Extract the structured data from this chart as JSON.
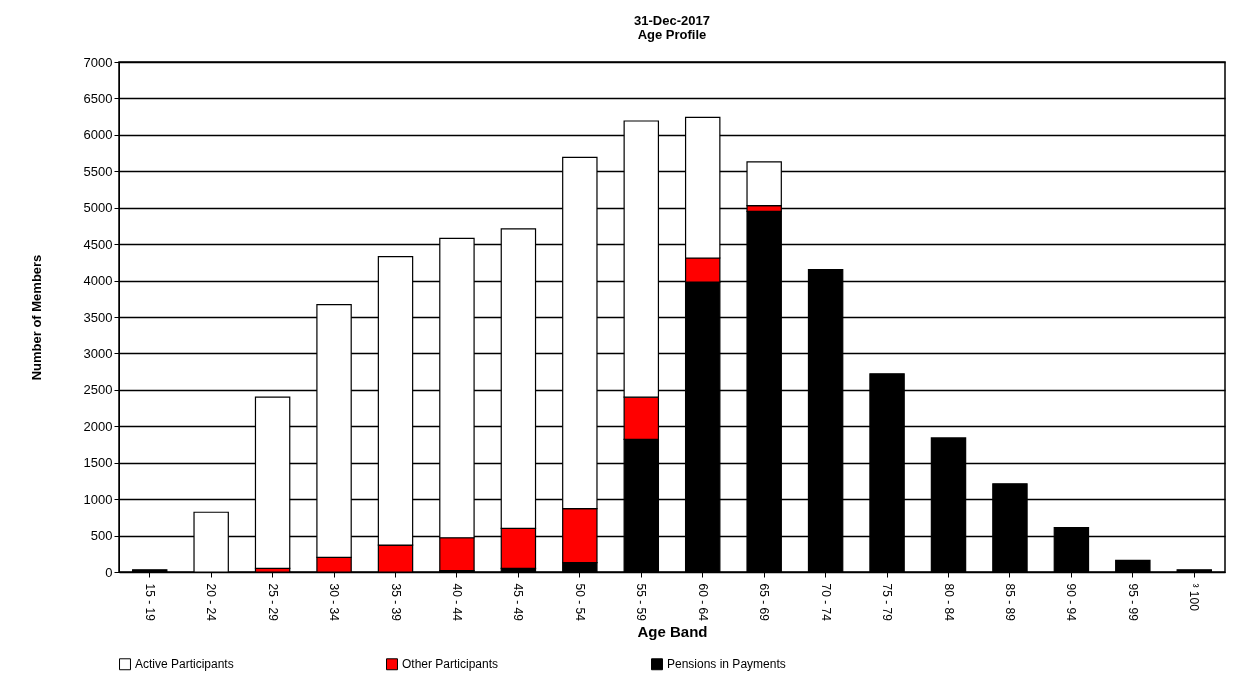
{
  "chart_data": {
    "type": "bar",
    "title": "31-Dec-2017",
    "subtitle": "Age Profile",
    "xlabel": "Age Band",
    "ylabel": "Number of Members",
    "categories": [
      "15 - 19",
      "20 - 24",
      "25 - 29",
      "30 - 34",
      "35 - 39",
      "40 - 44",
      "45 - 49",
      "50 - 54",
      "55 - 59",
      "60 - 64",
      "65 - 69",
      "70 - 74",
      "75 - 79",
      "80 - 84",
      "85 - 89",
      "90 - 94",
      "95 - 99",
      "³ 100"
    ],
    "stacked": true,
    "series": [
      {
        "name": "Pensions in Payments",
        "color": "#000000",
        "values": [
          30,
          0,
          0,
          0,
          0,
          20,
          50,
          130,
          1820,
          3980,
          4950,
          4150,
          2720,
          1840,
          1210,
          610,
          160,
          30
        ]
      },
      {
        "name": "Other Participants",
        "color": "#ff0000",
        "values": [
          0,
          0,
          50,
          200,
          370,
          450,
          550,
          740,
          580,
          330,
          80,
          0,
          0,
          0,
          0,
          0,
          0,
          0
        ]
      },
      {
        "name": "Active Participants",
        "color": "#ffffff",
        "values": [
          0,
          820,
          2350,
          3470,
          3960,
          4110,
          4110,
          4820,
          3790,
          1930,
          600,
          0,
          0,
          0,
          0,
          0,
          0,
          0
        ]
      }
    ],
    "ylim": [
      0,
      7000
    ],
    "yticks": [
      0,
      500,
      1000,
      1500,
      2000,
      2500,
      3000,
      3500,
      4000,
      4500,
      5000,
      5500,
      6000,
      6500,
      7000
    ],
    "grid": "y",
    "legend": "bottom"
  }
}
